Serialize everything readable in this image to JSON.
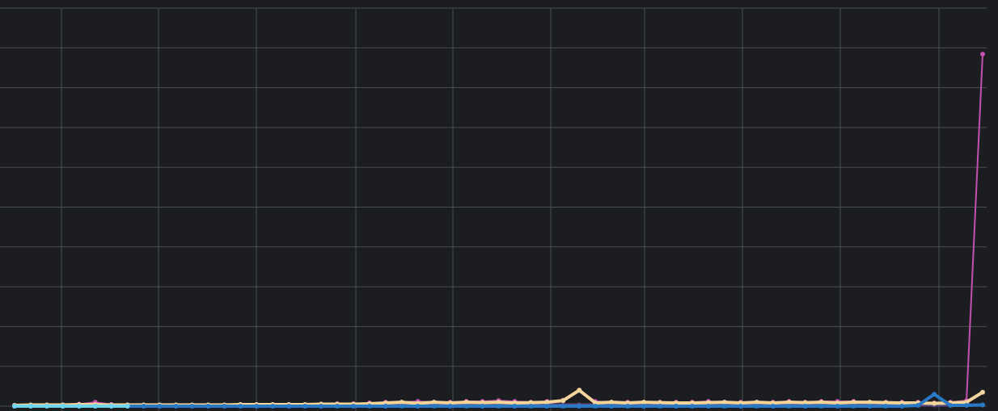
{
  "chart_data": {
    "type": "line",
    "title": "",
    "xlabel": "",
    "ylabel": "",
    "grid": true,
    "legend": "none",
    "xlim": [
      0,
      61
    ],
    "ylim": [
      0,
      9
    ],
    "background": "#1b1d21",
    "grid_color": "#4a4d52",
    "series": [
      {
        "color": "#5b4a86",
        "values": [
          0,
          0,
          0,
          0,
          0,
          0,
          0,
          0,
          0,
          0,
          0,
          0,
          0,
          0,
          0,
          0,
          0,
          0,
          0,
          0,
          0.02,
          0.02,
          0.02,
          0.03,
          0.03,
          0.03,
          0.03,
          0.03,
          0.03,
          0.03,
          0.03,
          0.03,
          0.03,
          0.03,
          0.03,
          0.03,
          0.03,
          0.03,
          0.03,
          0.03,
          0.03,
          0.03,
          0.03,
          0.03,
          0.03,
          0.03,
          0.03,
          0.03,
          0.03,
          0.03,
          0.03,
          0.03,
          0.03,
          0.03,
          0.03,
          0.03,
          0.03,
          0.03,
          0.03,
          0.03,
          0.03
        ]
      },
      {
        "color": "#c44fb0",
        "values": [
          0.02,
          0.03,
          0.03,
          0.03,
          0.05,
          0.1,
          0.04,
          0.03,
          0.03,
          0.03,
          0.03,
          0.03,
          0.03,
          0.03,
          0.04,
          0.04,
          0.04,
          0.04,
          0.04,
          0.05,
          0.06,
          0.06,
          0.08,
          0.1,
          0.1,
          0.12,
          0.1,
          0.1,
          0.12,
          0.12,
          0.14,
          0.12,
          0.1,
          0.12,
          0.15,
          0.4,
          0.12,
          0.1,
          0.1,
          0.1,
          0.1,
          0.1,
          0.1,
          0.12,
          0.1,
          0.1,
          0.1,
          0.1,
          0.12,
          0.1,
          0.12,
          0.12,
          0.12,
          0.1,
          0.1,
          0.1,
          0.1,
          0.08,
          0.1,
          0.14,
          8.85
        ]
      },
      {
        "color": "#f3d49a",
        "values": [
          0.02,
          0.03,
          0.03,
          0.03,
          0.04,
          0.04,
          0.03,
          0.03,
          0.03,
          0.03,
          0.03,
          0.03,
          0.03,
          0.03,
          0.04,
          0.04,
          0.04,
          0.04,
          0.04,
          0.05,
          0.05,
          0.05,
          0.06,
          0.08,
          0.1,
          0.07,
          0.1,
          0.08,
          0.1,
          0.09,
          0.1,
          0.08,
          0.09,
          0.1,
          0.14,
          0.4,
          0.08,
          0.1,
          0.08,
          0.1,
          0.09,
          0.08,
          0.08,
          0.09,
          0.1,
          0.08,
          0.1,
          0.08,
          0.1,
          0.09,
          0.1,
          0.08,
          0.1,
          0.1,
          0.09,
          0.08,
          0.08,
          0.07,
          0.08,
          0.1,
          0.35
        ]
      },
      {
        "color": "#2a79c4",
        "values": [
          0,
          0,
          0,
          0,
          0,
          0,
          0,
          0,
          0,
          0,
          0,
          0,
          0,
          0,
          0,
          0,
          0,
          0,
          0,
          0,
          0,
          0,
          0,
          0,
          0,
          0,
          0,
          0,
          0,
          0,
          0,
          0,
          0,
          0,
          0,
          0,
          0,
          0,
          0,
          0,
          0,
          0,
          0,
          0,
          0,
          0,
          0,
          0,
          0,
          0,
          0,
          0,
          0,
          0,
          0,
          0,
          0.02,
          0.3,
          0.02,
          0.02,
          0.03
        ]
      },
      {
        "color": "#6fd6ee",
        "values": [
          0,
          0,
          0,
          0,
          0,
          0,
          0,
          0
        ]
      }
    ]
  }
}
